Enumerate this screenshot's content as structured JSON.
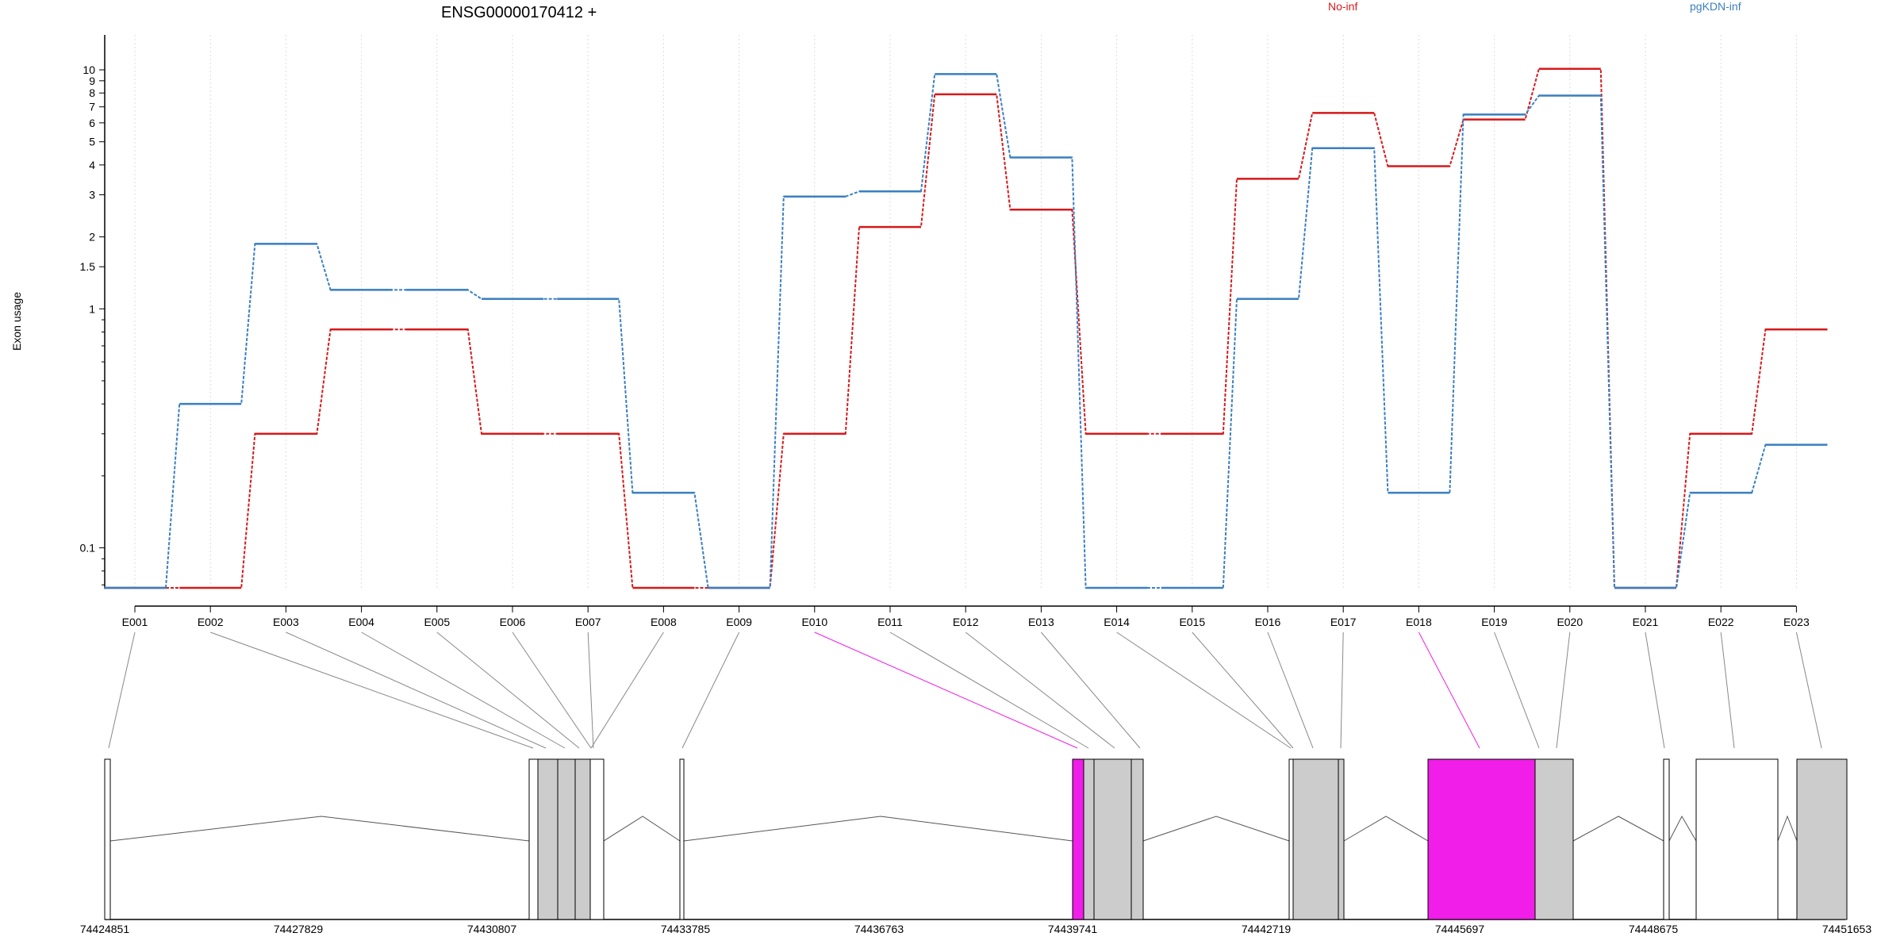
{
  "chart_data": {
    "type": "line",
    "title": "ENSG00000170412 +",
    "ylabel": "Exon usage",
    "yscale": "log",
    "ylim": [
      0.068,
      14
    ],
    "yticks": [
      0.1,
      1,
      1.5,
      2,
      3,
      4,
      5,
      6,
      7,
      8,
      9,
      10
    ],
    "ytick_labels": [
      "0.1",
      "1",
      "1.5",
      "2",
      "3",
      "4",
      "5",
      "6",
      "7",
      "8",
      "9",
      "10"
    ],
    "legend": [
      "No-inf",
      "pgKDN-inf"
    ],
    "colors": {
      "No-inf": "#d7191c",
      "pgKDN-inf": "#3a7fc1",
      "highlight": "#f01ee8",
      "exon_fill": "#cccccc"
    },
    "categories": [
      "E001",
      "E002",
      "E003",
      "E004",
      "E005",
      "E006",
      "E007",
      "E008",
      "E009",
      "E010",
      "E011",
      "E012",
      "E013",
      "E014",
      "E015",
      "E016",
      "E017",
      "E018",
      "E019",
      "E020",
      "E021",
      "E022",
      "E023"
    ],
    "highlighted_exons": [
      "E010",
      "E018"
    ],
    "series": [
      {
        "name": "No-inf",
        "values": [
          0.068,
          0.068,
          0.3,
          0.82,
          0.82,
          0.3,
          0.3,
          0.068,
          0.068,
          0.3,
          2.2,
          7.9,
          2.6,
          0.3,
          0.3,
          3.5,
          6.6,
          3.95,
          6.2,
          10.1,
          0.068,
          0.3,
          0.82
        ]
      },
      {
        "name": "pgKDN-inf",
        "values": [
          0.068,
          0.4,
          1.87,
          1.2,
          1.2,
          1.1,
          1.1,
          0.17,
          0.068,
          2.95,
          3.1,
          9.6,
          4.3,
          0.068,
          0.068,
          1.1,
          4.7,
          0.17,
          6.5,
          7.8,
          0.068,
          0.17,
          0.27
        ]
      }
    ],
    "genomic_ticks": [
      "74424851",
      "74427829",
      "74430807",
      "74433785",
      "74436763",
      "74439741",
      "74442719",
      "74445697",
      "74448675",
      "74451653"
    ]
  }
}
